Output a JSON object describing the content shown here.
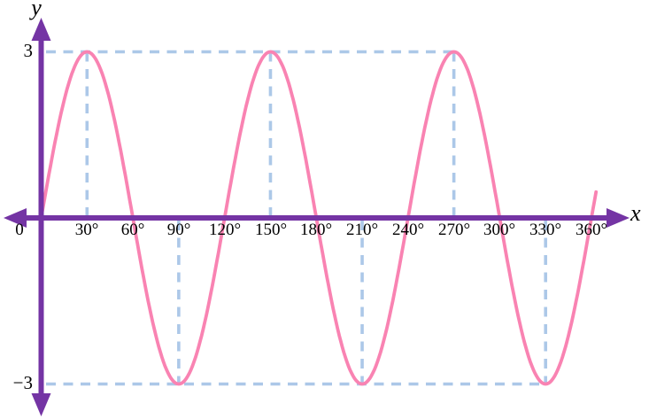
{
  "chart_data": {
    "type": "line",
    "description": "Sine curve with amplitude 3 and period 120 degrees, y = 3 sin(3x), plotted from 0 to 360 degrees",
    "xlabel": "x",
    "ylabel": "y",
    "x_unit": "degrees",
    "amplitude": 3,
    "frequency_multiplier": 3,
    "xlim_deg": [
      0,
      360
    ],
    "ylim": [
      -3,
      3
    ],
    "x_draw_range_deg": [
      0,
      363.5
    ],
    "x_tick_interval_deg": 30,
    "x_tick_labels": [
      "0",
      "30°",
      "60°",
      "90°",
      "120°",
      "150°",
      "180°",
      "210°",
      "240°",
      "270°",
      "300°",
      "330°",
      "360°"
    ],
    "y_max_label": "3",
    "y_min_label": "−3",
    "peaks_deg": [
      30,
      150,
      270
    ],
    "troughs_deg": [
      90,
      210,
      330
    ],
    "zero_crossings_deg": [
      0,
      60,
      120,
      180,
      240,
      300,
      360
    ],
    "key_points": [
      {
        "x_deg": 0,
        "y": 0
      },
      {
        "x_deg": 30,
        "y": 3
      },
      {
        "x_deg": 60,
        "y": 0
      },
      {
        "x_deg": 90,
        "y": -3
      },
      {
        "x_deg": 120,
        "y": 0
      },
      {
        "x_deg": 150,
        "y": 3
      },
      {
        "x_deg": 180,
        "y": 0
      },
      {
        "x_deg": 210,
        "y": -3
      },
      {
        "x_deg": 240,
        "y": 0
      },
      {
        "x_deg": 270,
        "y": 3
      },
      {
        "x_deg": 300,
        "y": 0
      },
      {
        "x_deg": 330,
        "y": -3
      },
      {
        "x_deg": 360,
        "y": 0
      }
    ],
    "guide_lines": {
      "style": "dashed",
      "top_horizontal_at_y": 3,
      "top_horizontal_extent_deg": 270,
      "bottom_horizontal_at_y": -3,
      "bottom_horizontal_extent_deg": 330,
      "verticals_above_axis_deg": [
        30,
        150,
        270
      ],
      "verticals_below_axis_deg": [
        90,
        210,
        330
      ]
    },
    "legend": "none",
    "grid": false,
    "colors": {
      "axis": "#7434A4",
      "curve": "#F983B2",
      "guides": "#ACC8E8",
      "text": "#000000",
      "background": "#FFFFFF"
    }
  }
}
